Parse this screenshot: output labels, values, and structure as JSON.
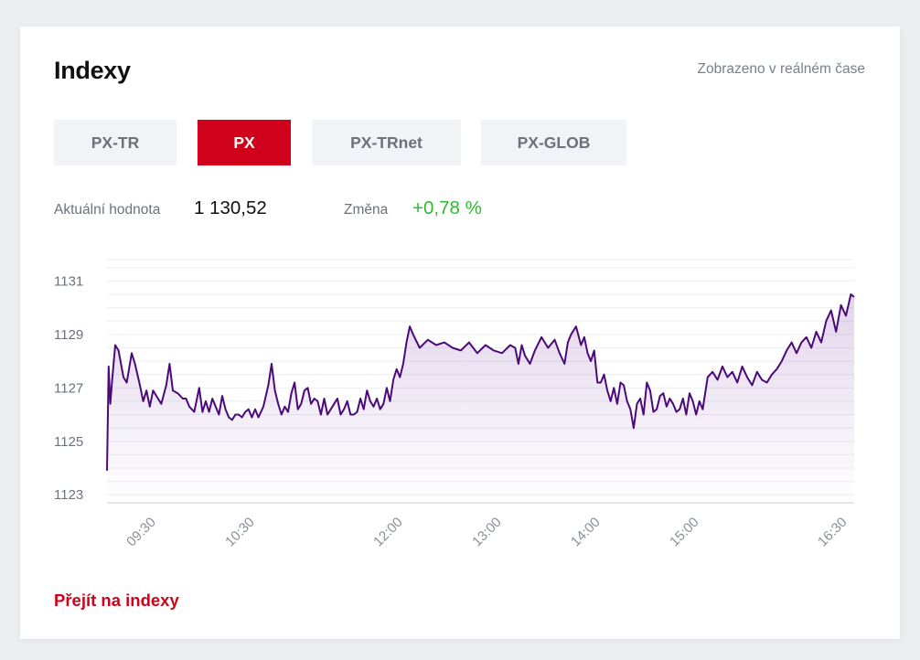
{
  "header": {
    "title": "Indexy",
    "realtime_note": "Zobrazeno v reálném čase"
  },
  "tabs": [
    {
      "label": "PX-TR",
      "active": false
    },
    {
      "label": "PX",
      "active": true
    },
    {
      "label": "PX-TRnet",
      "active": false
    },
    {
      "label": "PX-GLOB",
      "active": false
    }
  ],
  "stats": {
    "current_label": "Aktuální hodnota",
    "current_value": "1 130,52",
    "change_label": "Změna",
    "change_value": "+0,78 %"
  },
  "footer": {
    "link_label": "Přejít na indexy"
  },
  "colors": {
    "accent": "#d0021b",
    "positive": "#2ebd2e",
    "line": "#4b0a7a"
  },
  "chart_data": {
    "type": "area",
    "title": "",
    "xlabel": "",
    "ylabel": "",
    "ylim": [
      1122.7,
      1131.8
    ],
    "xlim": [
      "09:00",
      "16:34"
    ],
    "y_ticks": [
      "1123",
      "1125",
      "1127",
      "1129",
      "1131"
    ],
    "x_ticks": [
      "09:30",
      "10:30",
      "12:00",
      "13:00",
      "14:00",
      "15:00",
      "16:30"
    ],
    "grid": true,
    "series": [
      {
        "x": [
          "09:00",
          "09:01",
          "09:02",
          "09:03",
          "09:05",
          "09:07",
          "09:10",
          "09:12",
          "09:15",
          "09:17",
          "09:20",
          "09:22",
          "09:24",
          "09:26",
          "09:28",
          "09:30",
          "09:33",
          "09:36",
          "09:38",
          "09:40",
          "09:43",
          "09:46",
          "09:48",
          "09:50",
          "09:53",
          "09:56",
          "09:58",
          "10:00",
          "10:02",
          "10:04",
          "10:06",
          "10:08",
          "10:10",
          "10:12",
          "10:14",
          "10:16",
          "10:18",
          "10:20",
          "10:22",
          "10:24",
          "10:26",
          "10:28",
          "10:30",
          "10:32",
          "10:35",
          "10:38",
          "10:40",
          "10:42",
          "10:44",
          "10:46",
          "10:48",
          "10:50",
          "10:52",
          "10:54",
          "10:56",
          "10:58",
          "11:00",
          "11:02",
          "11:04",
          "11:06",
          "11:08",
          "11:10",
          "11:12",
          "11:14",
          "11:16",
          "11:18",
          "11:20",
          "11:22",
          "11:24",
          "11:26",
          "11:28",
          "11:30",
          "11:32",
          "11:34",
          "11:36",
          "11:38",
          "11:40",
          "11:42",
          "11:44",
          "11:46",
          "11:48",
          "11:50",
          "11:52",
          "11:54",
          "11:56",
          "11:58",
          "12:00",
          "12:02",
          "12:04",
          "12:06",
          "12:10",
          "12:15",
          "12:20",
          "12:25",
          "12:30",
          "12:35",
          "12:40",
          "12:45",
          "12:50",
          "12:55",
          "13:00",
          "13:05",
          "13:08",
          "13:10",
          "13:12",
          "13:14",
          "13:17",
          "13:20",
          "13:24",
          "13:28",
          "13:32",
          "13:35",
          "13:38",
          "13:40",
          "13:42",
          "13:45",
          "13:48",
          "13:50",
          "13:52",
          "13:54",
          "13:56",
          "13:58",
          "14:00",
          "14:02",
          "14:04",
          "14:06",
          "14:08",
          "14:10",
          "14:12",
          "14:14",
          "14:16",
          "14:18",
          "14:20",
          "14:22",
          "14:24",
          "14:26",
          "14:28",
          "14:30",
          "14:32",
          "14:34",
          "14:36",
          "14:38",
          "14:40",
          "14:42",
          "14:44",
          "14:46",
          "14:48",
          "14:50",
          "14:52",
          "14:54",
          "14:56",
          "14:58",
          "15:00",
          "15:02",
          "15:05",
          "15:08",
          "15:11",
          "15:14",
          "15:17",
          "15:20",
          "15:23",
          "15:26",
          "15:29",
          "15:32",
          "15:35",
          "15:38",
          "15:41",
          "15:44",
          "15:47",
          "15:50",
          "15:53",
          "15:56",
          "15:59",
          "16:02",
          "16:05",
          "16:08",
          "16:11",
          "16:14",
          "16:17",
          "16:20",
          "16:23",
          "16:26",
          "16:29",
          "16:32",
          "16:34"
        ],
        "y": [
          1123.9,
          1127.8,
          1126.4,
          1127.2,
          1128.6,
          1128.4,
          1127.4,
          1127.2,
          1128.3,
          1127.9,
          1127.1,
          1126.5,
          1126.9,
          1126.3,
          1126.9,
          1126.7,
          1126.4,
          1127.1,
          1127.9,
          1126.9,
          1126.8,
          1126.6,
          1126.6,
          1126.3,
          1126.1,
          1127.0,
          1126.1,
          1126.5,
          1126.1,
          1126.6,
          1126.3,
          1126.0,
          1126.7,
          1126.2,
          1125.9,
          1125.8,
          1126.0,
          1126.0,
          1125.9,
          1126.1,
          1126.2,
          1125.9,
          1126.2,
          1125.9,
          1126.3,
          1127.1,
          1127.9,
          1126.9,
          1126.4,
          1126.0,
          1126.3,
          1126.1,
          1126.8,
          1127.2,
          1126.2,
          1126.4,
          1126.9,
          1127.0,
          1126.4,
          1126.6,
          1126.5,
          1126.0,
          1126.6,
          1126.0,
          1126.2,
          1126.4,
          1126.6,
          1126.0,
          1126.2,
          1126.5,
          1126.0,
          1126.0,
          1126.1,
          1126.6,
          1126.2,
          1126.9,
          1126.5,
          1126.3,
          1126.6,
          1126.2,
          1126.4,
          1127.0,
          1126.5,
          1127.3,
          1127.7,
          1127.4,
          1127.9,
          1128.7,
          1129.3,
          1129.0,
          1128.5,
          1128.8,
          1128.6,
          1128.7,
          1128.5,
          1128.4,
          1128.7,
          1128.3,
          1128.6,
          1128.4,
          1128.3,
          1128.6,
          1128.5,
          1127.9,
          1128.6,
          1128.2,
          1127.9,
          1128.4,
          1128.9,
          1128.5,
          1128.8,
          1128.3,
          1127.9,
          1128.7,
          1129.0,
          1129.3,
          1128.6,
          1128.9,
          1128.3,
          1128.0,
          1128.4,
          1127.2,
          1127.2,
          1127.5,
          1126.9,
          1126.5,
          1127.0,
          1126.4,
          1127.2,
          1127.1,
          1126.5,
          1126.2,
          1125.5,
          1126.4,
          1126.6,
          1126.0,
          1127.2,
          1126.9,
          1126.1,
          1126.2,
          1126.7,
          1126.8,
          1126.3,
          1126.6,
          1126.4,
          1126.1,
          1126.2,
          1126.6,
          1126.0,
          1126.8,
          1126.5,
          1126.0,
          1126.5,
          1126.2,
          1127.4,
          1127.6,
          1127.3,
          1127.8,
          1127.4,
          1127.6,
          1127.2,
          1127.8,
          1127.4,
          1127.1,
          1127.6,
          1127.3,
          1127.2,
          1127.5,
          1127.7,
          1128.0,
          1128.4,
          1128.7,
          1128.3,
          1128.7,
          1128.9,
          1128.5,
          1129.1,
          1128.7,
          1129.5,
          1129.9,
          1129.1,
          1130.1,
          1129.7,
          1130.5,
          1130.4
        ]
      }
    ]
  }
}
